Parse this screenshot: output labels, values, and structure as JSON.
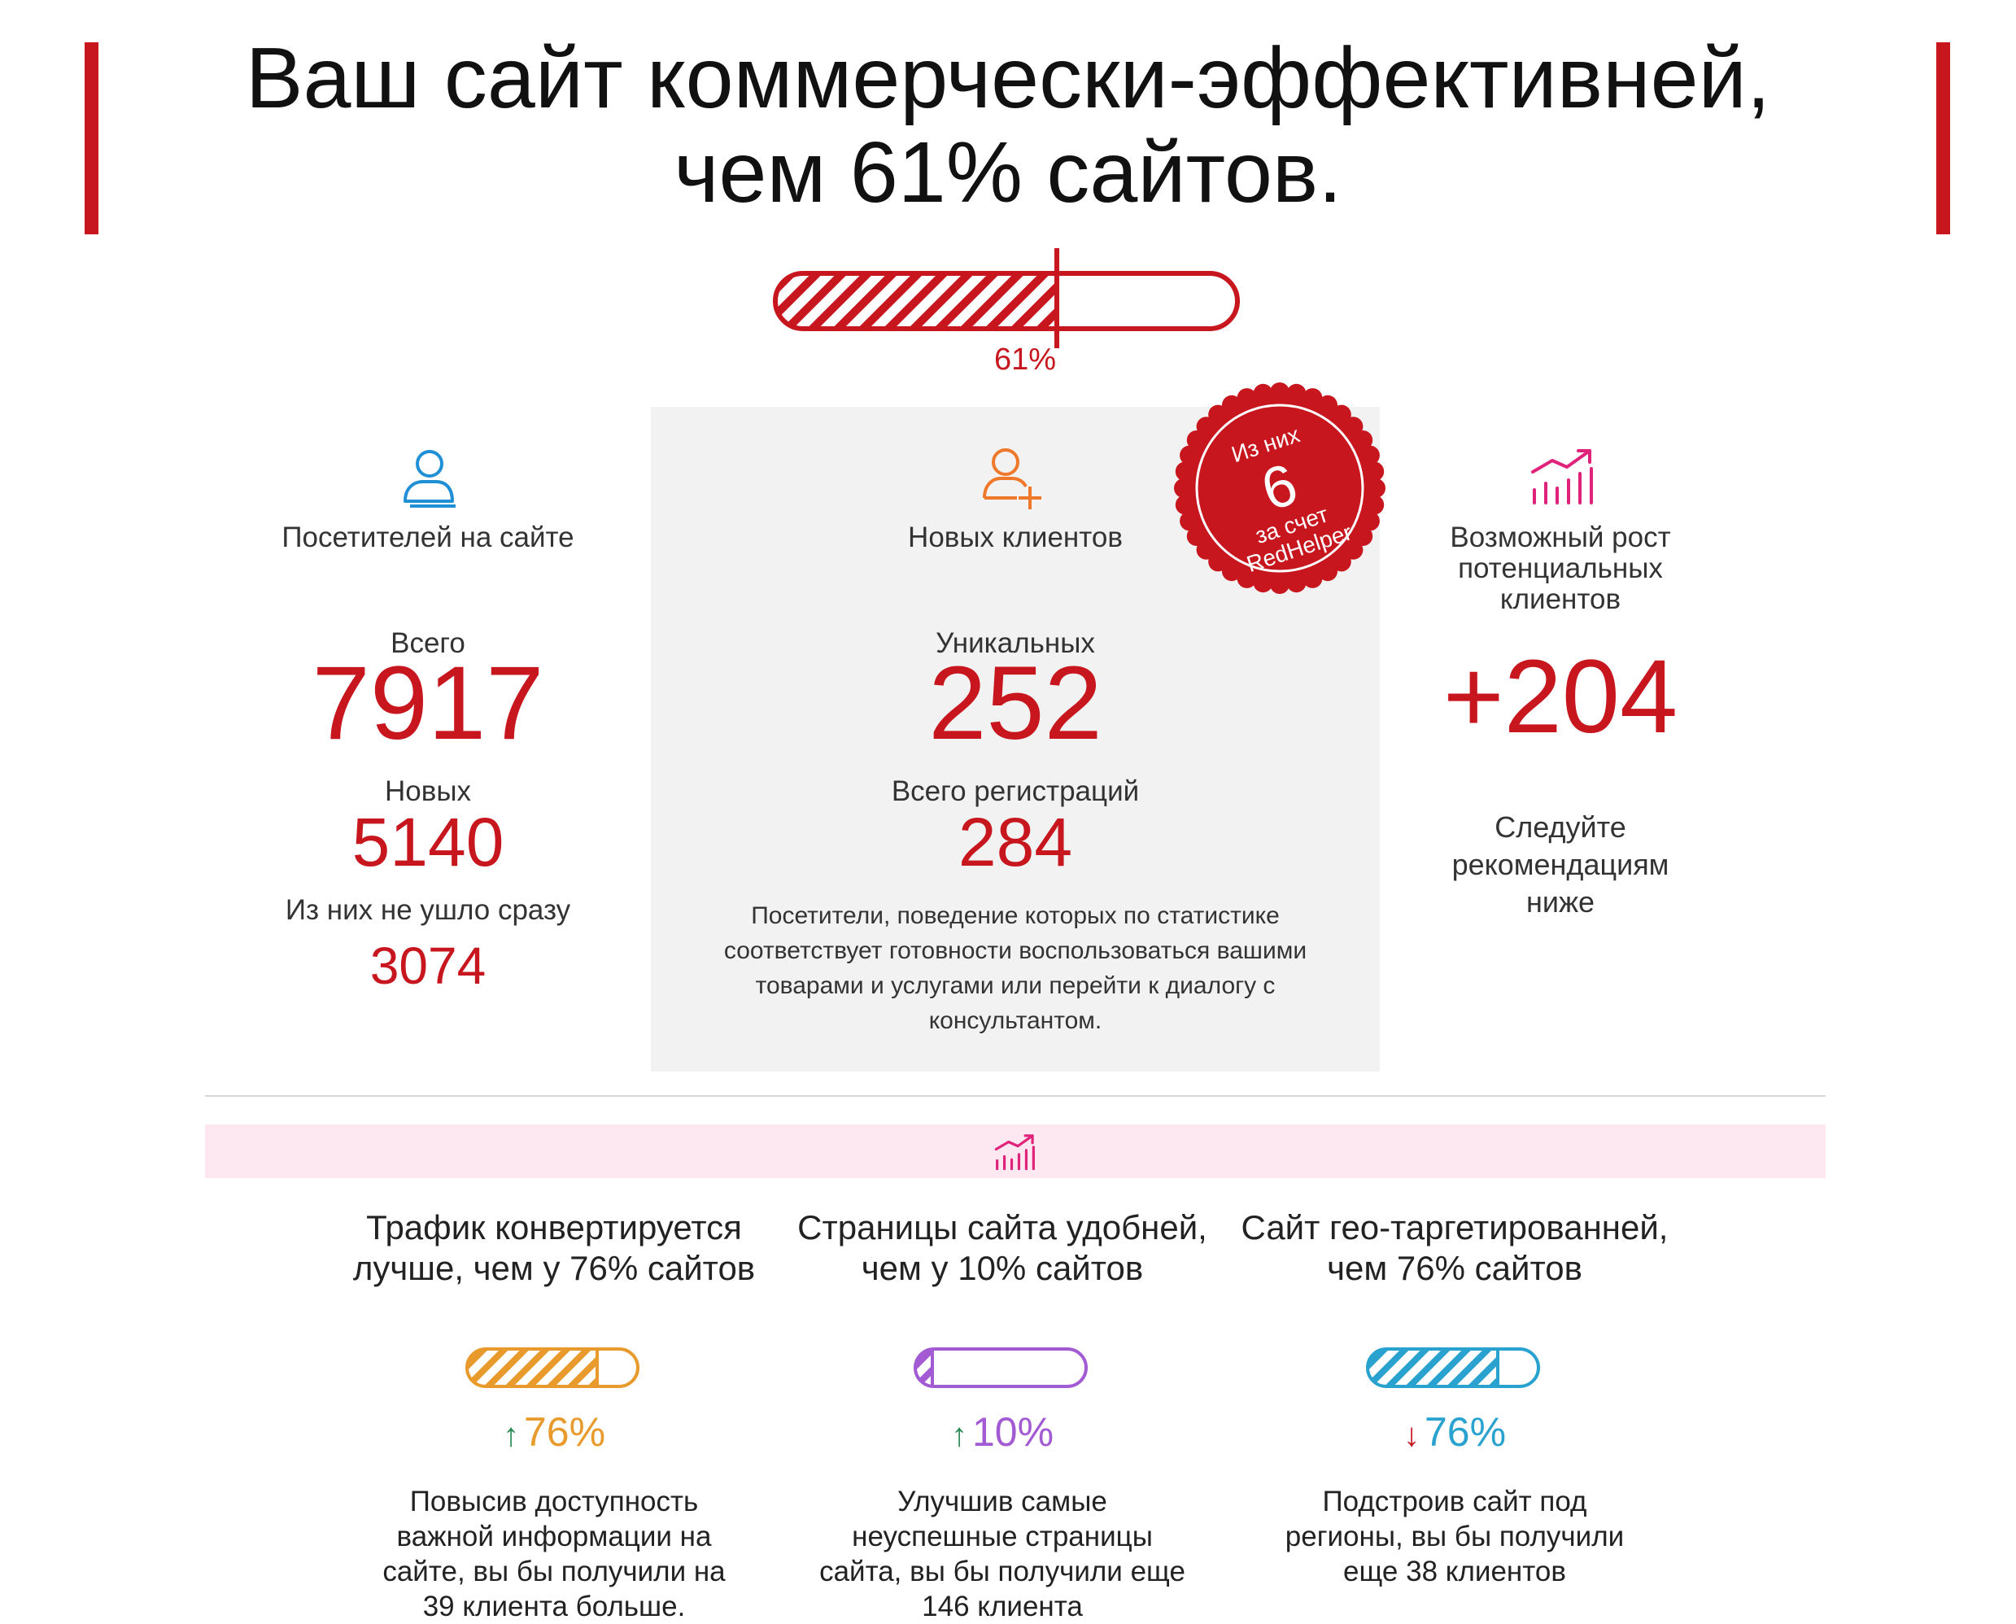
{
  "header": {
    "title_line1": "Ваш сайт коммерчески-эффективней,",
    "title_line2": "чем 61% сайтов.",
    "progress": {
      "value": 0.61,
      "label": "61%"
    }
  },
  "stats": {
    "visitors": {
      "icon": "user-icon",
      "title": "Посетителей на сайте",
      "total_label": "Всего",
      "total_value": "7917",
      "new_label": "Новых",
      "new_value": "5140",
      "stayed_label": "Из них не ушло сразу",
      "stayed_value": "3074"
    },
    "new_clients": {
      "icon": "user-add-icon",
      "title": "Новых клиентов",
      "unique_label": "Уникальных",
      "unique_value": "252",
      "registrations_label": "Всего регистраций",
      "registrations_value": "284",
      "description": "Посетители, поведение которых по статистике соответствует готовности воспользоваться вашими товарами и услугами или перейти к диалогу с консультантом.",
      "stamp": {
        "line1": "Из них",
        "value": "6",
        "line2": "за счет",
        "line3": "RedHelper"
      }
    },
    "growth": {
      "icon": "growth-chart-icon",
      "title": "Возможный рост потенциальных клиентов",
      "value": "+204",
      "note": "Следуйте рекомендациям ниже"
    }
  },
  "section_icon": "growth-chart-icon",
  "cards": [
    {
      "title": "Трафик конвертируется лучше, чем у 76% сайтов",
      "value": 0.76,
      "percent": "76%",
      "trend": "up",
      "trend_glyph": "↑",
      "color": "#e89a2c",
      "description": "Повысив доступность важной информации на сайте, вы бы получили на 39 клиента больше."
    },
    {
      "title": "Страницы сайта удобней, чем у 10% сайтов",
      "value": 0.1,
      "percent": "10%",
      "trend": "up",
      "trend_glyph": "↑",
      "color": "#a35bd4",
      "description": "Улучшив самые неуспешные страницы сайта, вы бы получили еще 146 клиента"
    },
    {
      "title": "Сайт гео-таргетированней, чем 76% сайтов",
      "value": 0.76,
      "percent": "76%",
      "trend": "down",
      "trend_glyph": "↓",
      "color": "#2aa2cf",
      "description": "Подстроив сайт под регионы, вы бы получили еще 38 клиентов"
    }
  ],
  "colors": {
    "accent": "#c8161e",
    "arrow_up": "#2e8b57",
    "arrow_down": "#c8161e",
    "pink_band": "#fde8f2"
  }
}
